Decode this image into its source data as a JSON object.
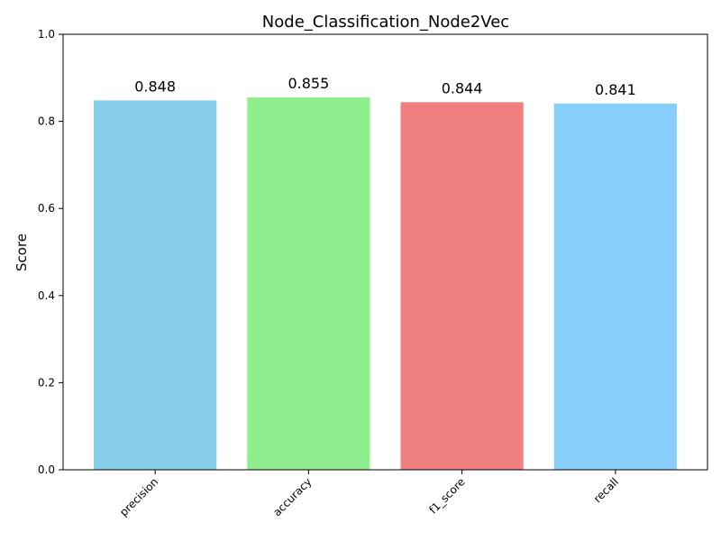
{
  "chart_data": {
    "type": "bar",
    "title": "Node_Classification_Node2Vec",
    "xlabel": "",
    "ylabel": "Score",
    "ylim": [
      0,
      1.0
    ],
    "yticks": [
      "0.0",
      "0.2",
      "0.4",
      "0.6",
      "0.8",
      "1.0"
    ],
    "categories": [
      "precision",
      "accuracy",
      "f1_score",
      "recall"
    ],
    "values": [
      0.848,
      0.855,
      0.844,
      0.841
    ],
    "value_labels": [
      "0.848",
      "0.855",
      "0.844",
      "0.841"
    ],
    "colors": [
      "#87CEEB",
      "#90EE90",
      "#F08080",
      "#87CEFA"
    ],
    "grid": false,
    "legend": "none"
  }
}
